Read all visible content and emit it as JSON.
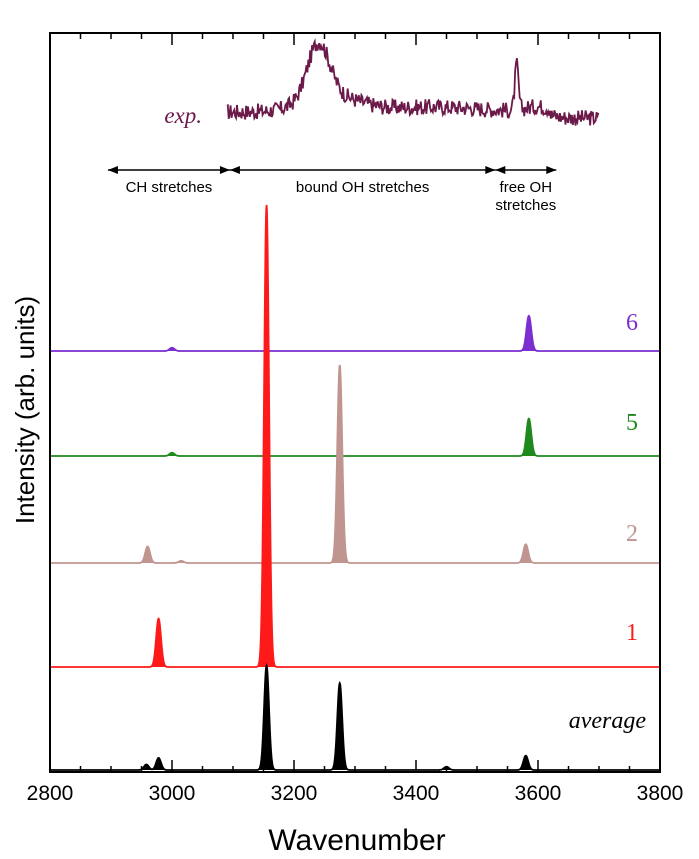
{
  "chart_data": {
    "type": "area",
    "xlabel": "Wavenumber",
    "ylabel": "Intensity (arb. units)",
    "xlim": [
      2800,
      3800
    ],
    "x_ticks": [
      "2800",
      "3000",
      "3200",
      "3400",
      "3600",
      "3800"
    ],
    "grid": false,
    "experiment": {
      "label": "exp.",
      "color": "#6b1a4a",
      "x_start": 3090,
      "x_end": 3700,
      "peaks": [
        {
          "x": 3240,
          "value": 0.55
        },
        {
          "x": 3565,
          "value": 0.45
        }
      ]
    },
    "regions": [
      {
        "label": "CH stretches",
        "x_start": 2895,
        "x_end": 3095
      },
      {
        "label": "bound OH stretches",
        "x_start": 3095,
        "x_end": 3530
      },
      {
        "label": "free OH\nstretches",
        "x_start": 3530,
        "x_end": 3630
      }
    ],
    "series": [
      {
        "name": "6",
        "color": "#7b2fd0",
        "peaks": [
          {
            "x": 3000,
            "height": 0.03
          },
          {
            "x": 3585,
            "height": 0.32
          }
        ]
      },
      {
        "name": "5",
        "color": "#1e8a1e",
        "peaks": [
          {
            "x": 3000,
            "height": 0.03
          },
          {
            "x": 3585,
            "height": 0.34
          }
        ]
      },
      {
        "name": "2",
        "color": "#c09590",
        "peaks": [
          {
            "x": 2960,
            "height": 0.15
          },
          {
            "x": 3015,
            "height": 0.02
          },
          {
            "x": 3275,
            "height": 1.8
          },
          {
            "x": 3580,
            "height": 0.17
          }
        ]
      },
      {
        "name": "1",
        "color": "#ff1a1a",
        "peaks": [
          {
            "x": 2978,
            "height": 0.44
          },
          {
            "x": 3155,
            "height": 4.2
          }
        ]
      },
      {
        "name": "average",
        "color": "#000000",
        "peaks": [
          {
            "x": 2958,
            "height": 0.05
          },
          {
            "x": 2978,
            "height": 0.11
          },
          {
            "x": 3155,
            "height": 0.95
          },
          {
            "x": 3275,
            "height": 0.79
          },
          {
            "x": 3450,
            "height": 0.03
          },
          {
            "x": 3580,
            "height": 0.13
          }
        ]
      }
    ]
  }
}
